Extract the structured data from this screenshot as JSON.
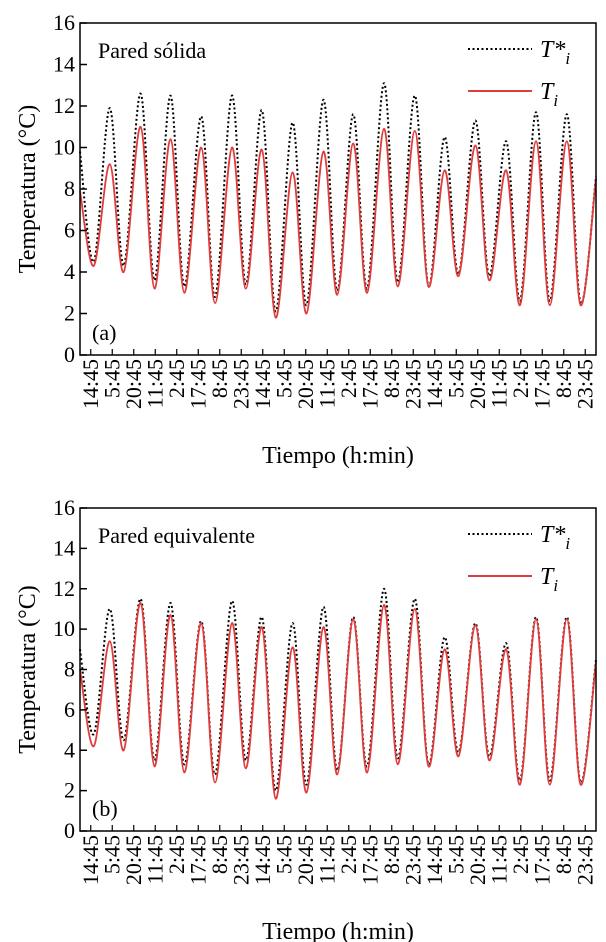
{
  "chart_data": [
    {
      "type": "line",
      "panel_label": "(a)",
      "title": "Pared sólida",
      "xlabel": "Tiempo (h:min)",
      "ylabel": "Temperatura (°C)",
      "ylim": [
        0,
        16
      ],
      "y_ticks": [
        0,
        2,
        4,
        6,
        8,
        10,
        12,
        14,
        16
      ],
      "x_tick_labels": [
        "14:45",
        "5:45",
        "20:45",
        "11:45",
        "2:45",
        "17:45",
        "8:45",
        "23:45",
        "14:45",
        "5:45",
        "20:45",
        "11:45",
        "2:45",
        "17:45",
        "8:45",
        "23:45",
        "14:45",
        "5:45",
        "20:45",
        "11:45",
        "2:45",
        "17:45",
        "8:45",
        "23:45"
      ],
      "legend_position": "top-right",
      "series": [
        {
          "name": "T*",
          "subscript": "i",
          "style": "dotted",
          "color": "#000000",
          "x": [
            0,
            0.45,
            0.97,
            1.42,
            1.97,
            2.42,
            2.94,
            3.39,
            3.94,
            4.39,
            4.94,
            5.39,
            5.91,
            6.36,
            6.91,
            7.36,
            7.91,
            8.36,
            8.88,
            9.33,
            9.88,
            10.33,
            10.88,
            11.33,
            11.85,
            12.3,
            12.85,
            13.3,
            13.85,
            14.3,
            14.82,
            15.27,
            15.82,
            16.27,
            16.77
          ],
          "y": [
            9.8,
            4.5,
            11.9,
            4.3,
            12.6,
            3.6,
            12.5,
            3.3,
            11.5,
            2.8,
            12.5,
            3.4,
            11.8,
            2.1,
            11.2,
            2.4,
            12.3,
            3.1,
            11.6,
            3.2,
            13.1,
            3.5,
            12.5,
            3.3,
            10.5,
            3.9,
            11.3,
            3.8,
            10.3,
            2.6,
            11.7,
            2.6,
            11.6,
            2.5,
            8.6
          ]
        },
        {
          "name": "T",
          "subscript": "i",
          "style": "solid",
          "color": "#e03c3c",
          "x": [
            0,
            0.45,
            0.97,
            1.42,
            1.97,
            2.42,
            2.94,
            3.39,
            3.94,
            4.39,
            4.94,
            5.39,
            5.91,
            6.36,
            6.91,
            7.36,
            7.91,
            8.36,
            8.88,
            9.33,
            9.88,
            10.33,
            10.88,
            11.33,
            11.85,
            12.3,
            12.85,
            13.3,
            13.85,
            14.3,
            14.82,
            15.27,
            15.82,
            16.27,
            16.77
          ],
          "y": [
            7.9,
            4.3,
            9.2,
            4.0,
            11.0,
            3.2,
            10.4,
            3.0,
            10.0,
            2.5,
            10.0,
            3.2,
            9.9,
            1.8,
            8.8,
            2.0,
            9.8,
            2.9,
            10.2,
            3.0,
            10.9,
            3.3,
            10.8,
            3.3,
            8.9,
            3.8,
            10.1,
            3.6,
            8.9,
            2.4,
            10.3,
            2.4,
            10.3,
            2.4,
            8.5
          ]
        }
      ]
    },
    {
      "type": "line",
      "panel_label": "(b)",
      "title": "Pared equivalente",
      "xlabel": "Tiempo (h:min)",
      "ylabel": "Temperatura (°C)",
      "ylim": [
        0,
        16
      ],
      "y_ticks": [
        0,
        2,
        4,
        6,
        8,
        10,
        12,
        14,
        16
      ],
      "x_tick_labels": [
        "14:45",
        "5:45",
        "20:45",
        "11:45",
        "2:45",
        "17:45",
        "8:45",
        "23:45",
        "14:45",
        "5:45",
        "20:45",
        "11:45",
        "2:45",
        "17:45",
        "8:45",
        "23:45",
        "14:45",
        "5:45",
        "20:45",
        "11:45",
        "2:45",
        "17:45",
        "8:45",
        "23:45"
      ],
      "legend_position": "top-right",
      "series": [
        {
          "name": "T*",
          "subscript": "i",
          "style": "dotted",
          "color": "#000000",
          "x": [
            0,
            0.45,
            0.97,
            1.42,
            1.97,
            2.42,
            2.94,
            3.39,
            3.94,
            4.39,
            4.94,
            5.39,
            5.91,
            6.36,
            6.91,
            7.36,
            7.91,
            8.36,
            8.88,
            9.33,
            9.88,
            10.33,
            10.88,
            11.33,
            11.85,
            12.3,
            12.85,
            13.3,
            13.85,
            14.3,
            14.82,
            15.27,
            15.82,
            16.27,
            16.77
          ],
          "y": [
            9.0,
            4.8,
            11.0,
            4.5,
            11.5,
            3.5,
            11.3,
            3.3,
            10.4,
            2.8,
            11.4,
            3.5,
            10.6,
            2.0,
            10.3,
            2.3,
            11.1,
            3.0,
            10.6,
            3.2,
            12.0,
            3.6,
            11.5,
            3.3,
            9.6,
            3.9,
            10.3,
            3.7,
            9.3,
            2.5,
            10.6,
            2.5,
            10.6,
            2.4,
            8.5
          ]
        },
        {
          "name": "T",
          "subscript": "i",
          "style": "solid",
          "color": "#e03c3c",
          "x": [
            0,
            0.45,
            0.97,
            1.42,
            1.97,
            2.42,
            2.94,
            3.39,
            3.94,
            4.39,
            4.94,
            5.39,
            5.91,
            6.36,
            6.91,
            7.36,
            7.91,
            8.36,
            8.88,
            9.33,
            9.88,
            10.33,
            10.88,
            11.33,
            11.85,
            12.3,
            12.85,
            13.3,
            13.85,
            14.3,
            14.82,
            15.27,
            15.82,
            16.27,
            16.77
          ],
          "y": [
            8.0,
            4.2,
            9.4,
            4.0,
            11.3,
            3.2,
            10.7,
            2.9,
            10.3,
            2.4,
            10.3,
            3.1,
            10.1,
            1.6,
            9.1,
            1.9,
            10.1,
            2.8,
            10.5,
            2.9,
            11.2,
            3.3,
            11.0,
            3.2,
            9.0,
            3.7,
            10.2,
            3.5,
            9.0,
            2.3,
            10.5,
            2.3,
            10.5,
            2.3,
            8.4
          ]
        }
      ]
    }
  ]
}
